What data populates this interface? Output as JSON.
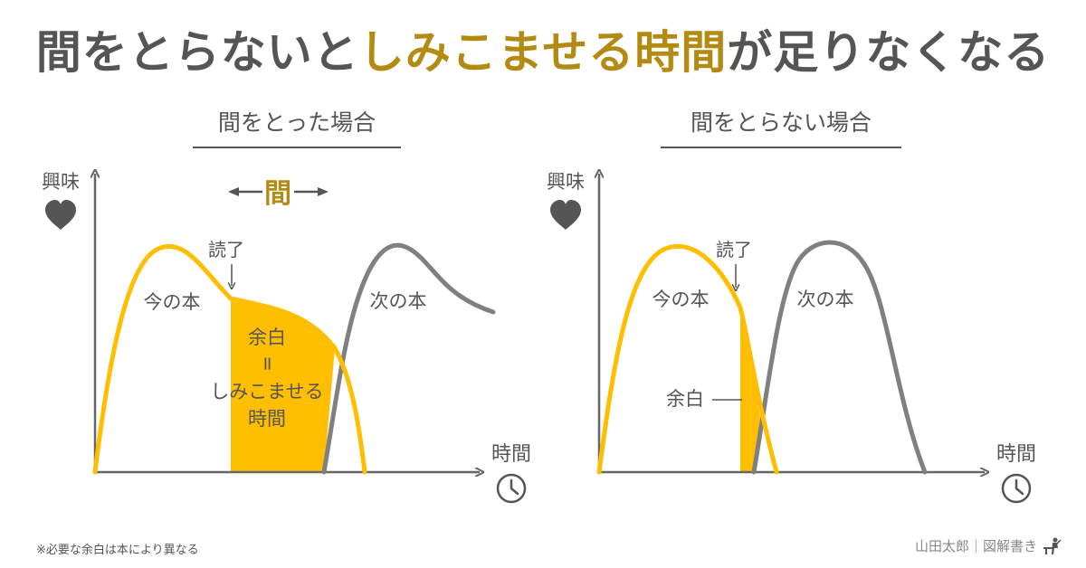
{
  "title": {
    "part1": "間をとらないと",
    "part2": "しみこませる時間",
    "part3": "が足りなくなる"
  },
  "left": {
    "heading": "間をとった場合",
    "y_label": "興味",
    "x_label": "時間",
    "gap_label": "間",
    "finished_label": "読了",
    "current_book": "今の本",
    "next_book": "次の本",
    "margin_line1": "余白",
    "margin_line2": "=",
    "margin_line3": "しみこませる",
    "margin_line4": "時間"
  },
  "right": {
    "heading": "間をとらない場合",
    "y_label": "興味",
    "x_label": "時間",
    "finished_label": "読了",
    "current_book": "今の本",
    "next_book": "次の本",
    "margin_label": "余白"
  },
  "footnote": "※必要な余白は本により異なる",
  "credit": "山田太郎｜図解書き",
  "colors": {
    "accent": "#FFBF00",
    "accent_text": "#b38a12",
    "next_curve": "#808080",
    "axis": "#666666",
    "text": "#555555"
  },
  "icons": [
    "heart-icon",
    "clock-icon",
    "writer-icon"
  ]
}
